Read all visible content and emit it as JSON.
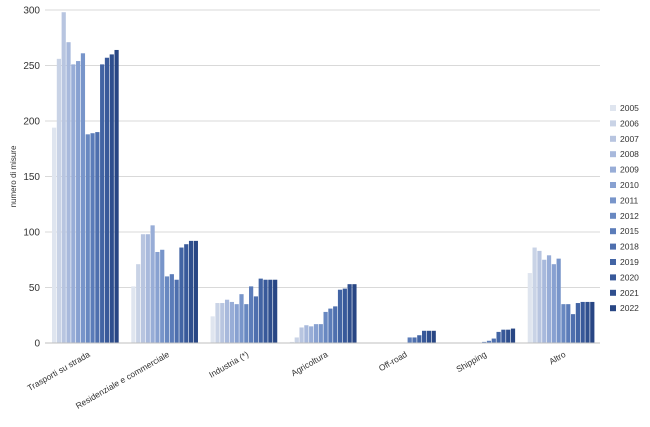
{
  "chart_data": {
    "type": "bar",
    "title": "",
    "xlabel": "",
    "ylabel": "numero di misure",
    "ylim": [
      0,
      300
    ],
    "yticks": [
      0,
      50,
      100,
      150,
      200,
      250,
      300
    ],
    "grid": true,
    "legend_position": "right",
    "categories": [
      "Trasporti su strada",
      "Residenziale e commerciale",
      "Industria (*)",
      "Agricoltura",
      "Off-road",
      "Shipping",
      "Altro"
    ],
    "series": [
      {
        "name": "2005",
        "color": "#dfe5ef",
        "values": [
          194,
          51,
          24,
          1,
          0,
          0,
          63
        ]
      },
      {
        "name": "2006",
        "color": "#c9d3e6",
        "values": [
          256,
          71,
          36,
          5,
          0,
          0,
          86
        ]
      },
      {
        "name": "2007",
        "color": "#b8c5e0",
        "values": [
          298,
          98,
          36,
          14,
          0,
          0,
          83
        ]
      },
      {
        "name": "2008",
        "color": "#a8b9dc",
        "values": [
          271,
          98,
          39,
          16,
          0,
          0,
          75
        ]
      },
      {
        "name": "2009",
        "color": "#98add7",
        "values": [
          251,
          106,
          37,
          15,
          0,
          0,
          79
        ]
      },
      {
        "name": "2010",
        "color": "#88a1d1",
        "values": [
          254,
          82,
          35,
          17,
          0,
          0,
          71
        ]
      },
      {
        "name": "2011",
        "color": "#7895ca",
        "values": [
          261,
          84,
          44,
          17,
          0,
          0,
          76
        ]
      },
      {
        "name": "2012",
        "color": "#6888c1",
        "values": [
          188,
          60,
          35,
          28,
          0,
          1,
          35
        ]
      },
      {
        "name": "2015",
        "color": "#5b7cb9",
        "values": [
          189,
          62,
          51,
          31,
          5,
          2,
          35
        ]
      },
      {
        "name": "2018",
        "color": "#4e6fae",
        "values": [
          190,
          57,
          42,
          33,
          5,
          4,
          26
        ]
      },
      {
        "name": "2019",
        "color": "#4264a4",
        "values": [
          251,
          86,
          58,
          48,
          7,
          10,
          36
        ]
      },
      {
        "name": "2020",
        "color": "#38599a",
        "values": [
          257,
          89,
          57,
          49,
          11,
          12,
          37
        ]
      },
      {
        "name": "2021",
        "color": "#2f4f8e",
        "values": [
          260,
          92,
          57,
          53,
          11,
          12,
          37
        ]
      },
      {
        "name": "2022",
        "color": "#284684",
        "values": [
          264,
          92,
          57,
          53,
          11,
          13,
          37
        ]
      }
    ]
  }
}
